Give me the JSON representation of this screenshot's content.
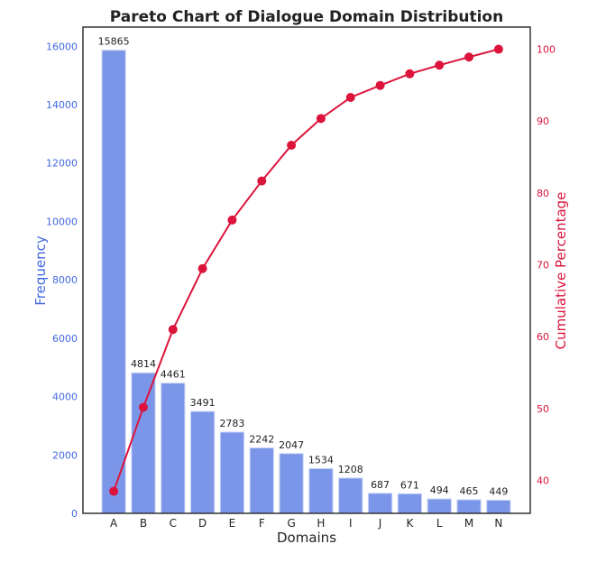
{
  "chart_data": {
    "type": "bar+line",
    "title": "Pareto Chart of Dialogue Domain Distribution",
    "xlabel": "Domains",
    "ylabel": "Frequency",
    "ylabel_right": "Cumulative Percentage",
    "categories": [
      "A",
      "B",
      "C",
      "D",
      "E",
      "F",
      "G",
      "H",
      "I",
      "J",
      "K",
      "L",
      "M",
      "N"
    ],
    "series": [
      {
        "type": "bar",
        "axis": "left",
        "values": [
          15865,
          4814,
          4461,
          3491,
          2783,
          2242,
          2047,
          1534,
          1208,
          687,
          671,
          494,
          465,
          449
        ]
      },
      {
        "type": "line",
        "axis": "right",
        "values": [
          38.5,
          50.18,
          61.0,
          69.48,
          76.23,
          81.67,
          86.64,
          90.36,
          93.29,
          94.96,
          96.58,
          97.78,
          98.91,
          100.0
        ]
      }
    ],
    "ylim": [
      0,
      16658
    ],
    "ylim_right": [
      35.43,
      103.08
    ],
    "yticks": [
      0,
      2000,
      4000,
      6000,
      8000,
      10000,
      12000,
      14000,
      16000
    ],
    "yticks_right": [
      40,
      50,
      60,
      70,
      80,
      90,
      100
    ],
    "grid": false,
    "data_labels": true,
    "colors": {
      "bar": "#7B96E8",
      "line": "#DC143C",
      "left_axis": "#4169E1",
      "right_axis": "#DC143C"
    }
  }
}
